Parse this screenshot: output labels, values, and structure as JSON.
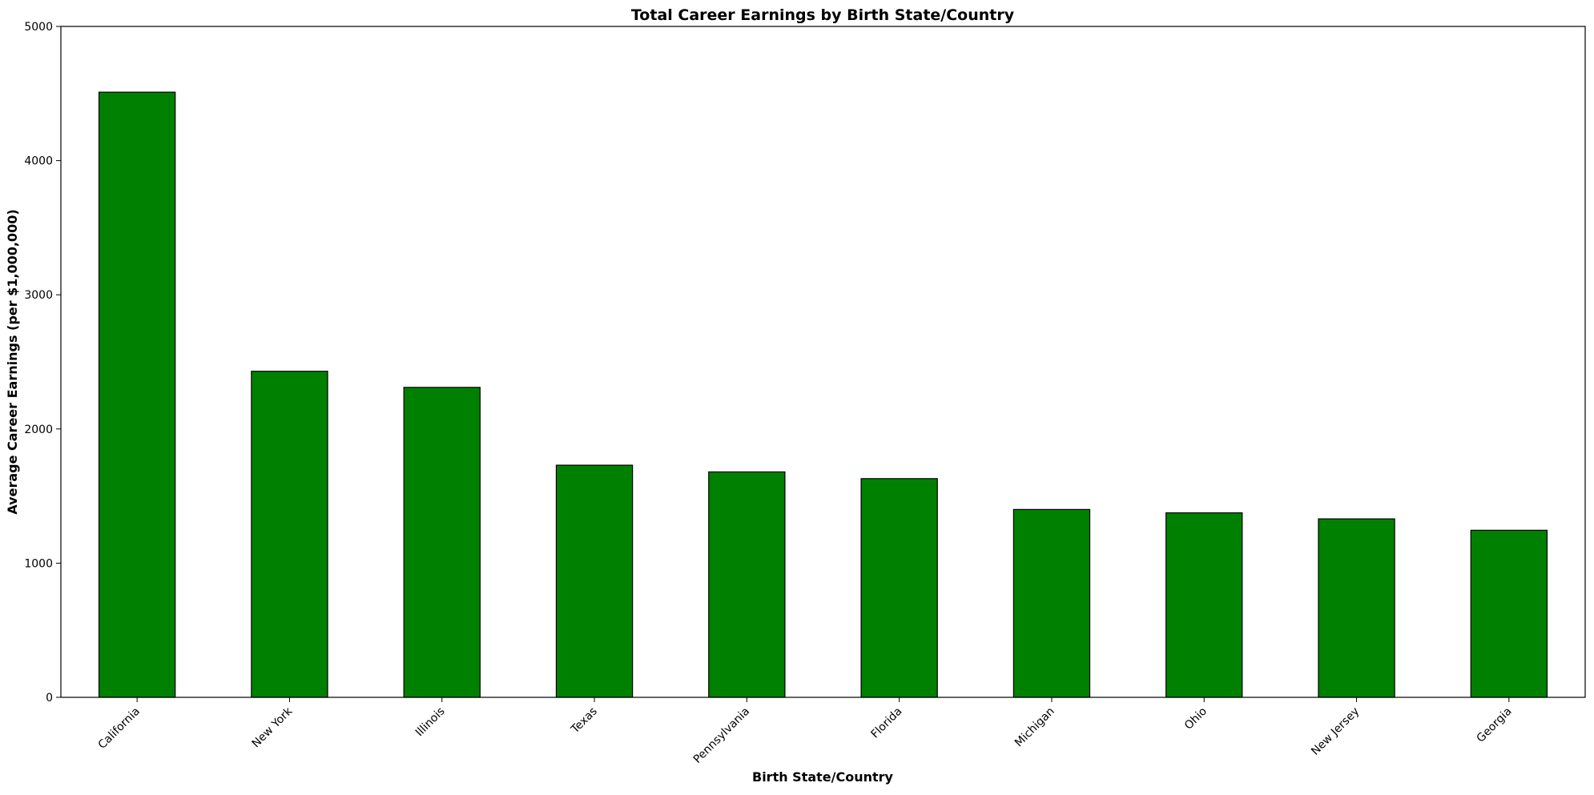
{
  "chart_data": {
    "type": "bar",
    "title": "Total Career Earnings by Birth State/Country",
    "xlabel": "Birth State/Country",
    "ylabel": "Average Career Earnings (per $1,000,000)",
    "categories": [
      "California",
      "New York",
      "Illinois",
      "Texas",
      "Pennsylvania",
      "Florida",
      "Michigan",
      "Ohio",
      "New Jersey",
      "Georgia"
    ],
    "values": [
      4510,
      2430,
      2310,
      1730,
      1680,
      1630,
      1400,
      1375,
      1330,
      1245
    ],
    "ylim": [
      0,
      5000
    ],
    "yticks": [
      0,
      1000,
      2000,
      3000,
      4000,
      5000
    ],
    "grid": false,
    "colors": {
      "bar_fill": "#008000",
      "bar_edge": "#000000"
    }
  }
}
